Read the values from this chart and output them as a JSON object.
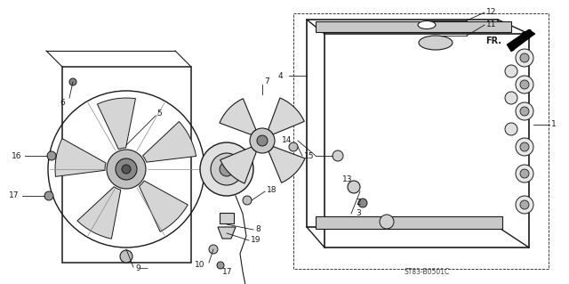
{
  "bg_color": "#ffffff",
  "line_color": "#1a1a1a",
  "fig_width": 6.4,
  "fig_height": 3.19,
  "dpi": 100,
  "diagram_code": "ST83-B0501C"
}
